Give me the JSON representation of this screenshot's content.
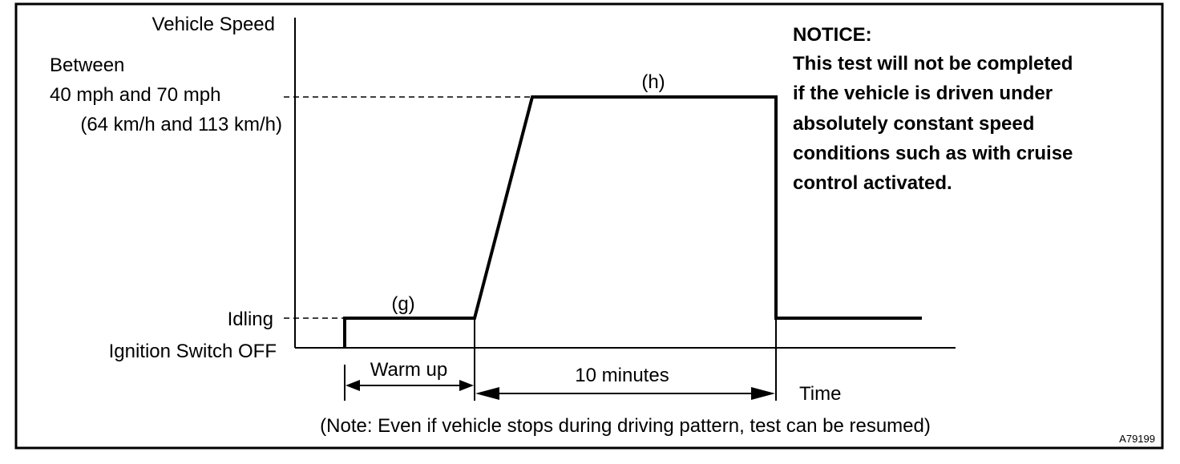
{
  "axis": {
    "y_label": "Vehicle Speed",
    "x_label": "Time"
  },
  "levels": {
    "speed": [
      "Between",
      "40 mph and 70 mph",
      "(64 km/h and 113 km/h)"
    ],
    "idling": "Idling",
    "ignition_off": "Ignition Switch OFF"
  },
  "segments": {
    "g": "(g)",
    "h": "(h)",
    "warm_up": "Warm up",
    "ten_minutes": "10 minutes"
  },
  "notice": {
    "heading": "NOTICE:",
    "lines": [
      "This test will not be completed",
      "if the vehicle is driven under",
      "absolutely constant speed",
      "conditions such as with cruise",
      "control activated."
    ]
  },
  "footnote": "(Note: Even if vehicle stops during driving pattern, test can be resumed)",
  "figure_id": "A79199"
}
